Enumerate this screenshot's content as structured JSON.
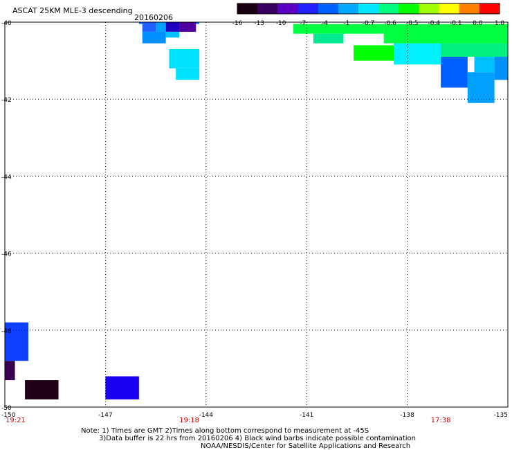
{
  "header": {
    "title": "ASCAT 25KM MLE-3 descending",
    "date": "20160206"
  },
  "colorbar": {
    "labels": [
      "-16",
      "-13",
      "-10",
      "-7",
      "-4",
      "-1",
      "-0.7",
      "-0.6",
      "-0.5",
      "-0.4",
      "-0.1",
      "0.0",
      "1.0"
    ],
    "colors": [
      "#1a0010",
      "#3a0060",
      "#5a00c0",
      "#2020ff",
      "#0060ff",
      "#00a8ff",
      "#00e8ff",
      "#00ff80",
      "#00ff00",
      "#a0ff00",
      "#ffff00",
      "#ff8000",
      "#ff0000"
    ]
  },
  "axes": {
    "lat_labels": [
      "-40",
      "-42",
      "-44",
      "-46",
      "-48",
      "-50"
    ],
    "lon_labels": [
      "-150",
      "-147",
      "-144",
      "-141",
      "-138",
      "-135"
    ],
    "time_labels": [
      {
        "text": "19:21",
        "lon": -150
      },
      {
        "text": "19:18",
        "lon": -144.5
      },
      {
        "text": "17:38",
        "lon": -137.0
      }
    ],
    "time_color": "#cc0000"
  },
  "map_data": {
    "lon_range": [
      -150,
      -135
    ],
    "lat_range": [
      -50,
      -40
    ],
    "cells": [
      {
        "lon": [
          -146.0,
          -144.2
        ],
        "lat": [
          -40.05,
          -40.0
        ],
        "color": "#0080ff"
      },
      {
        "lon": [
          -145.2,
          -144.8
        ],
        "lat": [
          -40.25,
          -40.0
        ],
        "color": "#2000c0"
      },
      {
        "lon": [
          -144.8,
          -144.3
        ],
        "lat": [
          -40.25,
          -40.0
        ],
        "color": "#5000a0"
      },
      {
        "lon": [
          -145.9,
          -145.5
        ],
        "lat": [
          -40.25,
          -40.0
        ],
        "color": "#2060ff"
      },
      {
        "lon": [
          -145.5,
          -145.2
        ],
        "lat": [
          -40.25,
          -40.0
        ],
        "color": "#00a0ff"
      },
      {
        "lon": [
          -145.9,
          -145.2
        ],
        "lat": [
          -40.55,
          -40.25
        ],
        "color": "#0090ff"
      },
      {
        "lon": [
          -145.2,
          -144.8
        ],
        "lat": [
          -40.4,
          -40.25
        ],
        "color": "#00c0ff"
      },
      {
        "lon": [
          -145.1,
          -144.2
        ],
        "lat": [
          -41.2,
          -40.7
        ],
        "color": "#00e0ff"
      },
      {
        "lon": [
          -144.9,
          -144.2
        ],
        "lat": [
          -41.5,
          -41.2
        ],
        "color": "#00e0ff"
      },
      {
        "lon": [
          -141.4,
          -138.7
        ],
        "lat": [
          -40.3,
          -40.05
        ],
        "color": "#00ff40"
      },
      {
        "lon": [
          -140.8,
          -139.9
        ],
        "lat": [
          -40.55,
          -40.3
        ],
        "color": "#00e890"
      },
      {
        "lon": [
          -139.6,
          -138.4
        ],
        "lat": [
          -41.0,
          -40.6
        ],
        "color": "#00ff00"
      },
      {
        "lon": [
          -138.4,
          -137.0
        ],
        "lat": [
          -41.1,
          -40.55
        ],
        "color": "#00f0ff"
      },
      {
        "lon": [
          -138.7,
          -135.0
        ],
        "lat": [
          -40.55,
          -40.05
        ],
        "color": "#00ff40"
      },
      {
        "lon": [
          -137.0,
          -135.0
        ],
        "lat": [
          -40.9,
          -40.55
        ],
        "color": "#00f080"
      },
      {
        "lon": [
          -136.0,
          -135.4
        ],
        "lat": [
          -41.3,
          -40.9
        ],
        "color": "#00c0ff"
      },
      {
        "lon": [
          -137.0,
          -136.2
        ],
        "lat": [
          -41.7,
          -40.9
        ],
        "color": "#0060ff"
      },
      {
        "lon": [
          -136.2,
          -135.4
        ],
        "lat": [
          -42.1,
          -41.3
        ],
        "color": "#00a0ff"
      },
      {
        "lon": [
          -135.4,
          -135.0
        ],
        "lat": [
          -41.5,
          -40.9
        ],
        "color": "#0090ff"
      },
      {
        "lon": [
          -150.0,
          -149.3
        ],
        "lat": [
          -48.8,
          -47.8
        ],
        "color": "#1040ff"
      },
      {
        "lon": [
          -150.0,
          -149.7
        ],
        "lat": [
          -49.3,
          -48.8
        ],
        "color": "#3a0050"
      },
      {
        "lon": [
          -149.4,
          -148.4
        ],
        "lat": [
          -49.8,
          -49.3
        ],
        "color": "#200018"
      },
      {
        "lon": [
          -147.0,
          -146.0
        ],
        "lat": [
          -49.8,
          -49.2
        ],
        "color": "#1a00f0"
      }
    ]
  },
  "notes": {
    "line1": "Note: 1) Times are GMT 2)Times along bottom correspond to measurement at -45S",
    "line2": "3)Data buffer is 22 hrs from 20160206 4) Black wind barbs indicate possible contamination",
    "line3": "NOAA/NESDIS/Center for Satellite Applications and Research"
  }
}
